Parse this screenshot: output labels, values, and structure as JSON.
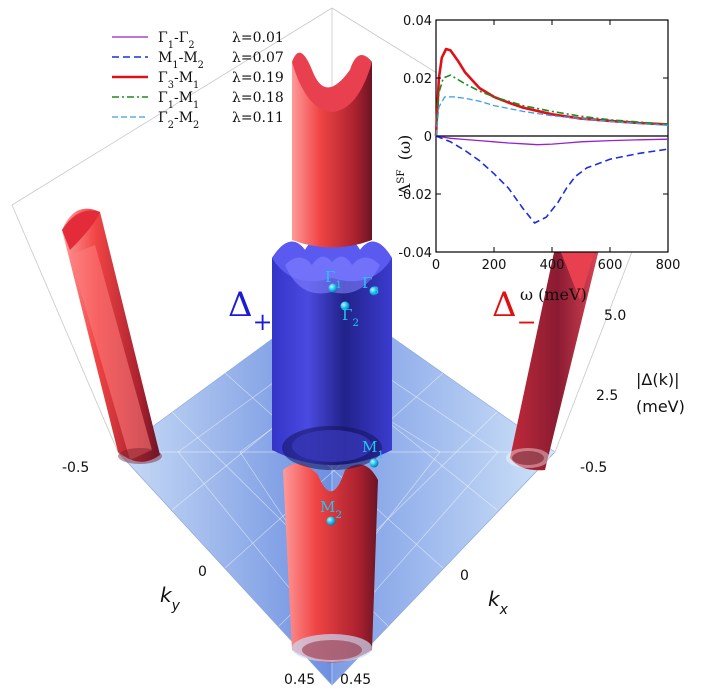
{
  "main_plot": {
    "delta_plus": "Δ",
    "delta_plus_sub": "+",
    "delta_minus": "Δ",
    "delta_minus_sub": "−",
    "delta_plus_color": "#1a1ad8",
    "delta_minus_color": "#e01010",
    "points": [
      {
        "name": "Γ",
        "sub": "1"
      },
      {
        "name": "Γ",
        "sub": "2"
      },
      {
        "name": "Γ",
        "sub": "3"
      },
      {
        "name": "M",
        "sub": "1"
      },
      {
        "name": "M",
        "sub": "2"
      }
    ],
    "point_color": "#22c6f0",
    "ky_label": "k",
    "ky_sub": "y",
    "kx_label": "k",
    "kx_sub": "x",
    "ky_ticks": [
      "-0.5",
      "0",
      "0.45"
    ],
    "kx_ticks": [
      "0.45",
      "0",
      "-0.5"
    ],
    "z_label_line1": "|Δ(k)|",
    "z_label_line2": "(meV)",
    "z_ticks": [
      "2.5",
      "5.0"
    ]
  },
  "chart_data": {
    "type": "line",
    "title": "",
    "xlabel": "ω (meV)",
    "ylabel": "Λ",
    "ylabel_sup": "SF",
    "ylabel_arg": "(ω)",
    "xlim": [
      0,
      800
    ],
    "ylim": [
      -0.04,
      0.04
    ],
    "xticks": [
      0,
      200,
      400,
      600,
      800
    ],
    "yticks": [
      -0.04,
      -0.02,
      0,
      0.02,
      0.04
    ],
    "ytick_labels": [
      "-0.04",
      "-0.02",
      "0",
      "0.02",
      "0.04"
    ],
    "legend_position": "top-left",
    "series": [
      {
        "name": "Γ1-Γ2",
        "label_parts": [
          [
            "Γ",
            "1"
          ],
          [
            "-",
            ""
          ],
          [
            "Γ",
            "2"
          ]
        ],
        "lambda": "λ=0.01",
        "color": "#9a1fd0",
        "dash": "",
        "width": 1.3,
        "x": [
          0,
          50,
          100,
          150,
          200,
          250,
          300,
          350,
          400,
          450,
          500,
          600,
          700,
          800
        ],
        "y": [
          0,
          -0.0008,
          -0.0012,
          -0.0016,
          -0.002,
          -0.0024,
          -0.0027,
          -0.003,
          -0.0028,
          -0.0024,
          -0.002,
          -0.0016,
          -0.0013,
          -0.0011
        ]
      },
      {
        "name": "M1-M2",
        "label_parts": [
          [
            "M",
            "1"
          ],
          [
            "-",
            ""
          ],
          [
            "M",
            "2"
          ]
        ],
        "lambda": "λ=0.07",
        "color": "#1a2ee0",
        "dash": "7,4",
        "width": 1.6,
        "x": [
          0,
          25,
          50,
          100,
          150,
          200,
          250,
          300,
          340,
          380,
          420,
          450,
          480,
          520,
          560,
          600,
          700,
          800
        ],
        "y": [
          0,
          -0.001,
          -0.002,
          -0.005,
          -0.0085,
          -0.013,
          -0.018,
          -0.025,
          -0.03,
          -0.028,
          -0.023,
          -0.018,
          -0.014,
          -0.011,
          -0.0095,
          -0.008,
          -0.006,
          -0.0045
        ]
      },
      {
        "name": "Γ3-M1",
        "label_parts": [
          [
            "Γ",
            "3"
          ],
          [
            "-",
            ""
          ],
          [
            "M",
            "1"
          ]
        ],
        "lambda": "λ=0.19",
        "color": "#e0101a",
        "dash": "",
        "width": 2.6,
        "x": [
          0,
          10,
          20,
          35,
          50,
          75,
          100,
          150,
          200,
          250,
          300,
          400,
          500,
          600,
          700,
          800
        ],
        "y": [
          0,
          0.02,
          0.027,
          0.03,
          0.0295,
          0.026,
          0.022,
          0.0165,
          0.0135,
          0.0115,
          0.0098,
          0.0075,
          0.006,
          0.0052,
          0.0045,
          0.004
        ]
      },
      {
        "name": "Γ1-M1",
        "label_parts": [
          [
            "Γ",
            "1"
          ],
          [
            "-",
            ""
          ],
          [
            "M",
            "1"
          ]
        ],
        "lambda": "λ=0.18",
        "color": "#1f8a1f",
        "dash": "7,3,2,3",
        "width": 1.6,
        "x": [
          0,
          10,
          25,
          50,
          75,
          100,
          150,
          200,
          250,
          300,
          400,
          500,
          600,
          700,
          800
        ],
        "y": [
          0,
          0.015,
          0.02,
          0.021,
          0.0195,
          0.018,
          0.0155,
          0.0135,
          0.012,
          0.0105,
          0.0085,
          0.0068,
          0.0056,
          0.0048,
          0.004
        ]
      },
      {
        "name": "Γ2-M2",
        "label_parts": [
          [
            "Γ",
            "2"
          ],
          [
            "-",
            ""
          ],
          [
            "M",
            "2"
          ]
        ],
        "lambda": "λ=0.11",
        "color": "#3a9ee8",
        "dash": "6,3",
        "width": 1.3,
        "x": [
          0,
          10,
          30,
          60,
          100,
          150,
          200,
          250,
          300,
          400,
          500,
          600,
          700,
          800
        ],
        "y": [
          0,
          0.01,
          0.0135,
          0.0135,
          0.013,
          0.012,
          0.0105,
          0.0095,
          0.0085,
          0.007,
          0.006,
          0.005,
          0.0043,
          0.0037
        ]
      }
    ]
  }
}
